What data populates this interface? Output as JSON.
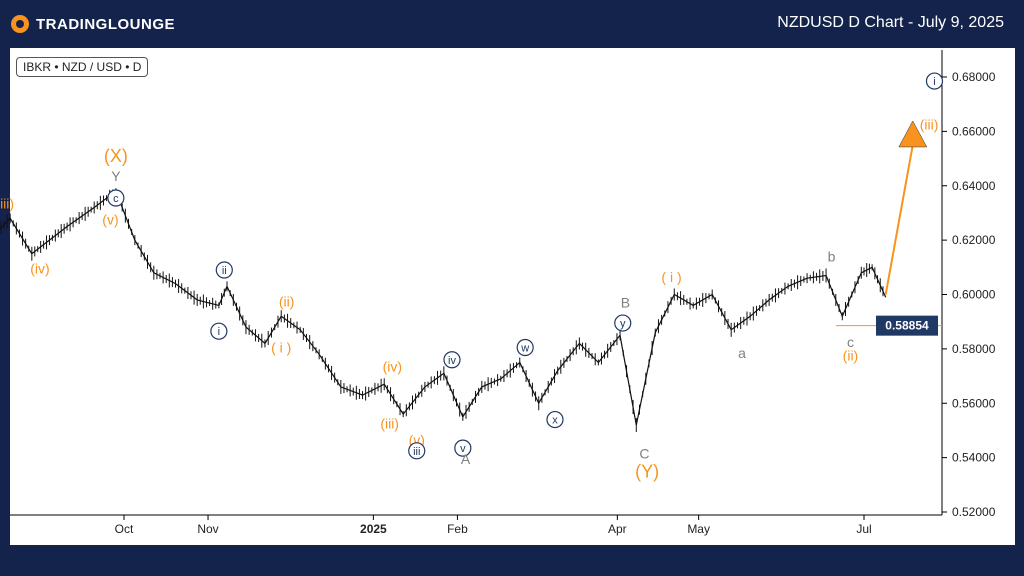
{
  "header": {
    "logo_text": "TRADINGLOUNGE",
    "title": "NZDUSD D Chart - July 9, 2025"
  },
  "symbol_label": "IBKR • NZD / USD • D",
  "colors": {
    "background": "#14234b",
    "orange": "#f7931e",
    "navy": "#1f3864",
    "grey": "#808080",
    "price_box": "#1f3864"
  },
  "chart_data": {
    "type": "line",
    "title": "NZDUSD D Chart - July 9, 2025",
    "xlabel": "",
    "ylabel": "",
    "ylim": [
      0.52,
      0.685
    ],
    "y_ticks": [
      "0.68000",
      "0.66000",
      "0.64000",
      "0.62000",
      "0.60000",
      "0.58000",
      "0.56000",
      "0.54000",
      "0.52000"
    ],
    "x_ticks": [
      {
        "label": "Oct",
        "date": "2024-10-01"
      },
      {
        "label": "Nov",
        "date": "2024-11-01"
      },
      {
        "label": "2025",
        "date": "2025-01-01"
      },
      {
        "label": "Feb",
        "date": "2025-02-01"
      },
      {
        "label": "Apr",
        "date": "2025-04-01"
      },
      {
        "label": "May",
        "date": "2025-05-01"
      },
      {
        "label": "Jul",
        "date": "2025-07-01"
      }
    ],
    "series": [
      {
        "values": [
          {
            "x": "2024-08-10",
            "y": 0.618
          },
          {
            "x": "2024-08-20",
            "y": 0.628
          },
          {
            "x": "2024-08-28",
            "y": 0.615
          },
          {
            "x": "2024-09-10",
            "y": 0.625
          },
          {
            "x": "2024-09-20",
            "y": 0.632
          },
          {
            "x": "2024-09-28",
            "y": 0.638
          },
          {
            "x": "2024-10-05",
            "y": 0.62
          },
          {
            "x": "2024-10-12",
            "y": 0.608
          },
          {
            "x": "2024-10-20",
            "y": 0.604
          },
          {
            "x": "2024-10-28",
            "y": 0.598
          },
          {
            "x": "2024-11-05",
            "y": 0.596
          },
          {
            "x": "2024-11-08",
            "y": 0.603
          },
          {
            "x": "2024-11-15",
            "y": 0.588
          },
          {
            "x": "2024-11-22",
            "y": 0.582
          },
          {
            "x": "2024-11-28",
            "y": 0.592
          },
          {
            "x": "2024-12-05",
            "y": 0.587
          },
          {
            "x": "2024-12-12",
            "y": 0.578
          },
          {
            "x": "2024-12-20",
            "y": 0.566
          },
          {
            "x": "2024-12-28",
            "y": 0.563
          },
          {
            "x": "2025-01-05",
            "y": 0.567
          },
          {
            "x": "2025-01-12",
            "y": 0.556
          },
          {
            "x": "2025-01-20",
            "y": 0.566
          },
          {
            "x": "2025-01-27",
            "y": 0.571
          },
          {
            "x": "2025-02-03",
            "y": 0.555
          },
          {
            "x": "2025-02-10",
            "y": 0.566
          },
          {
            "x": "2025-02-17",
            "y": 0.569
          },
          {
            "x": "2025-02-24",
            "y": 0.575
          },
          {
            "x": "2025-03-03",
            "y": 0.56
          },
          {
            "x": "2025-03-10",
            "y": 0.572
          },
          {
            "x": "2025-03-18",
            "y": 0.582
          },
          {
            "x": "2025-03-25",
            "y": 0.575
          },
          {
            "x": "2025-04-02",
            "y": 0.585
          },
          {
            "x": "2025-04-08",
            "y": 0.552
          },
          {
            "x": "2025-04-15",
            "y": 0.586
          },
          {
            "x": "2025-04-22",
            "y": 0.6
          },
          {
            "x": "2025-04-29",
            "y": 0.596
          },
          {
            "x": "2025-05-06",
            "y": 0.6
          },
          {
            "x": "2025-05-13",
            "y": 0.587
          },
          {
            "x": "2025-05-20",
            "y": 0.592
          },
          {
            "x": "2025-05-27",
            "y": 0.598
          },
          {
            "x": "2025-06-03",
            "y": 0.603
          },
          {
            "x": "2025-06-10",
            "y": 0.606
          },
          {
            "x": "2025-06-17",
            "y": 0.607
          },
          {
            "x": "2025-06-23",
            "y": 0.592
          },
          {
            "x": "2025-06-30",
            "y": 0.608
          },
          {
            "x": "2025-07-04",
            "y": 0.61
          },
          {
            "x": "2025-07-09",
            "y": 0.599
          }
        ]
      }
    ],
    "current_price": "0.58854",
    "projection": {
      "from": {
        "x": "2025-07-09",
        "y": 0.6
      },
      "to": {
        "x": "2025-07-19",
        "y": 0.655
      }
    },
    "wave_labels": [
      {
        "text": "(X)",
        "x": "2024-09-28",
        "y": 0.6505,
        "color": "orange",
        "style": "plain"
      },
      {
        "text": "Y",
        "x": "2024-09-28",
        "y": 0.6435,
        "color": "grey",
        "style": "plain"
      },
      {
        "text": "c",
        "x": "2024-09-28",
        "y": 0.6355,
        "color": "navy",
        "style": "circle"
      },
      {
        "text": "(v)",
        "x": "2024-09-26",
        "y": 0.6275,
        "color": "orange",
        "style": "plain"
      },
      {
        "text": "(iii)",
        "x": "2024-08-18",
        "y": 0.6335,
        "color": "orange",
        "style": "plain"
      },
      {
        "text": "(iv)",
        "x": "2024-08-31",
        "y": 0.6095,
        "color": "orange",
        "style": "plain"
      },
      {
        "text": "ii",
        "x": "2024-11-07",
        "y": 0.609,
        "color": "navy",
        "style": "circle"
      },
      {
        "text": "i",
        "x": "2024-11-05",
        "y": 0.5865,
        "color": "navy",
        "style": "circle"
      },
      {
        "text": "(ii)",
        "x": "2024-11-30",
        "y": 0.5975,
        "color": "orange",
        "style": "plain"
      },
      {
        "text": "( i )",
        "x": "2024-11-28",
        "y": 0.5805,
        "color": "orange",
        "style": "plain"
      },
      {
        "text": "(iv)",
        "x": "2025-01-08",
        "y": 0.5735,
        "color": "orange",
        "style": "plain"
      },
      {
        "text": "(iii)",
        "x": "2025-01-07",
        "y": 0.5525,
        "color": "orange",
        "style": "plain"
      },
      {
        "text": "(v)",
        "x": "2025-01-17",
        "y": 0.5465,
        "color": "orange",
        "style": "plain"
      },
      {
        "text": "iii",
        "x": "2025-01-17",
        "y": 0.5425,
        "color": "navy",
        "style": "circle"
      },
      {
        "text": "iv",
        "x": "2025-01-30",
        "y": 0.576,
        "color": "navy",
        "style": "circle"
      },
      {
        "text": "v",
        "x": "2025-02-03",
        "y": 0.5435,
        "color": "navy",
        "style": "circle"
      },
      {
        "text": "A",
        "x": "2025-02-04",
        "y": 0.5395,
        "color": "grey",
        "style": "plain"
      },
      {
        "text": "w",
        "x": "2025-02-26",
        "y": 0.5805,
        "color": "navy",
        "style": "circle"
      },
      {
        "text": "x",
        "x": "2025-03-09",
        "y": 0.554,
        "color": "navy",
        "style": "circle"
      },
      {
        "text": "B",
        "x": "2025-04-04",
        "y": 0.597,
        "color": "grey",
        "style": "plain"
      },
      {
        "text": "y",
        "x": "2025-04-03",
        "y": 0.5895,
        "color": "navy",
        "style": "circle"
      },
      {
        "text": "C",
        "x": "2025-04-11",
        "y": 0.5415,
        "color": "grey",
        "style": "plain"
      },
      {
        "text": "(Y)",
        "x": "2025-04-12",
        "y": 0.5345,
        "color": "orange",
        "style": "plain"
      },
      {
        "text": "( i )",
        "x": "2025-04-21",
        "y": 0.6065,
        "color": "orange",
        "style": "plain"
      },
      {
        "text": "a",
        "x": "2025-05-17",
        "y": 0.5785,
        "color": "grey",
        "style": "plain"
      },
      {
        "text": "b",
        "x": "2025-06-19",
        "y": 0.614,
        "color": "grey",
        "style": "plain"
      },
      {
        "text": "c",
        "x": "2025-06-26",
        "y": 0.5825,
        "color": "grey",
        "style": "plain"
      },
      {
        "text": "(ii)",
        "x": "2025-06-26",
        "y": 0.5775,
        "color": "orange",
        "style": "plain"
      },
      {
        "text": "i",
        "x": "2025-07-27",
        "y": 0.6785,
        "color": "navy",
        "style": "circle"
      },
      {
        "text": "(iii)",
        "x": "2025-07-25",
        "y": 0.6625,
        "color": "orange",
        "style": "plain"
      }
    ],
    "grid": false,
    "legend": "none"
  }
}
